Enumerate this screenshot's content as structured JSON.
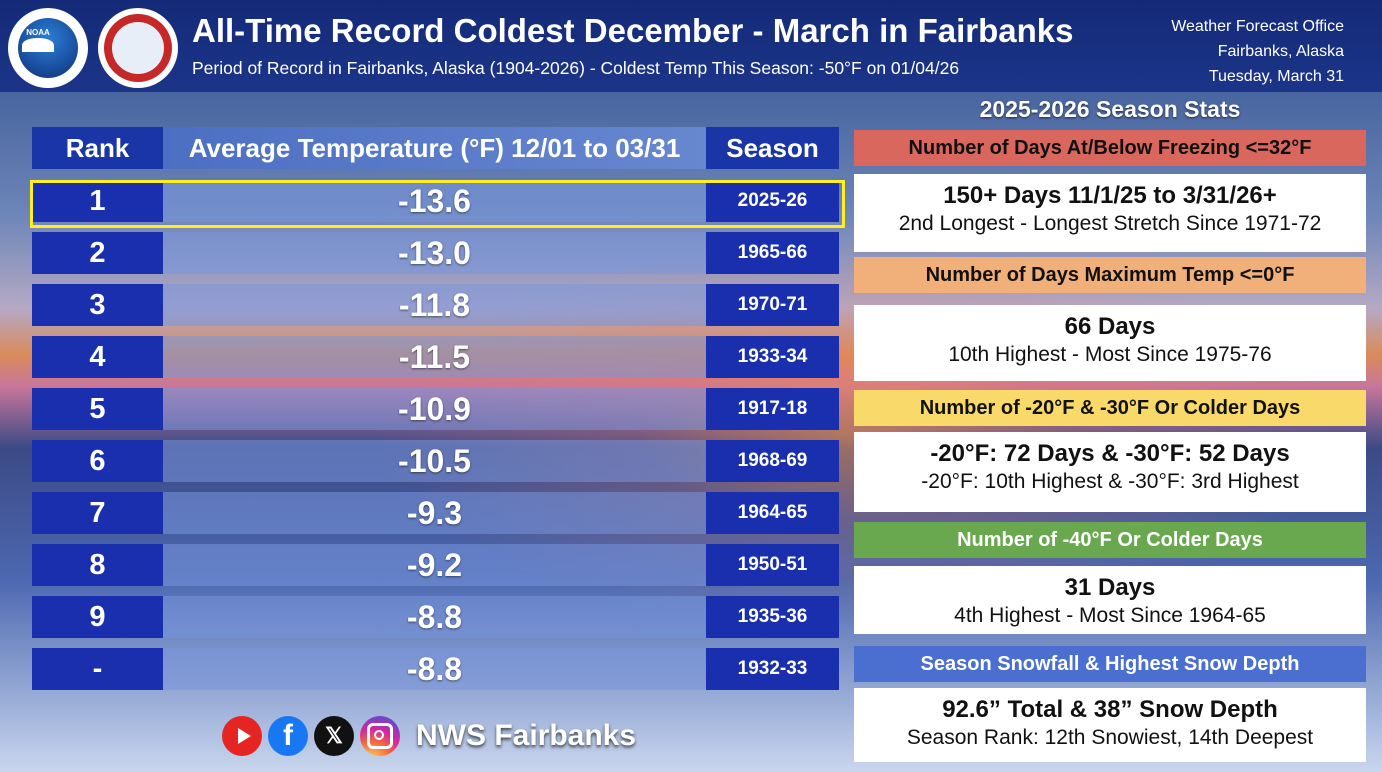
{
  "header": {
    "title": "All-Time Record Coldest December - March in Fairbanks",
    "subtitle": "Period of Record in Fairbanks, Alaska (1904-2026) - Coldest Temp This Season: -50°F on 01/04/26",
    "office_line1": "Weather Forecast Office",
    "office_line2": "Fairbanks, Alaska",
    "office_line3": "Tuesday, March 31",
    "logo_noaa_text": "NOAA"
  },
  "table": {
    "headers": {
      "rank": "Rank",
      "temp": "Average Temperature (°F) 12/01 to 03/31",
      "season": "Season"
    },
    "rows": [
      {
        "rank": "1",
        "temp": "-13.6",
        "season": "2025-26"
      },
      {
        "rank": "2",
        "temp": "-13.0",
        "season": "1965-66"
      },
      {
        "rank": "3",
        "temp": "-11.8",
        "season": "1970-71"
      },
      {
        "rank": "4",
        "temp": "-11.5",
        "season": "1933-34"
      },
      {
        "rank": "5",
        "temp": "-10.9",
        "season": "1917-18"
      },
      {
        "rank": "6",
        "temp": "-10.5",
        "season": "1968-69"
      },
      {
        "rank": "7",
        "temp": "-9.3",
        "season": "1964-65"
      },
      {
        "rank": "8",
        "temp": "-9.2",
        "season": "1950-51"
      },
      {
        "rank": "9",
        "temp": "-8.8",
        "season": "1935-36"
      },
      {
        "rank": "-",
        "temp": "-8.8",
        "season": "1932-33"
      }
    ]
  },
  "stats": {
    "title": "2025-2026 Season Stats",
    "items": [
      {
        "label": "Number of Days At/Below Freezing <=32°F",
        "label_bg": "#d9675e",
        "label_color": "#111111",
        "big": "150+ Days    11/1/25 to 3/31/26+",
        "small": "2nd Longest - Longest Stretch Since 1971-72"
      },
      {
        "label": "Number of Days Maximum Temp <=0°F",
        "label_bg": "#f1b07a",
        "label_color": "#111111",
        "big": "66 Days",
        "small": "10th Highest - Most Since 1975-76"
      },
      {
        "label": "Number of -20°F & -30°F Or Colder Days",
        "label_bg": "#f8d96a",
        "label_color": "#111111",
        "big": "-20°F: 72 Days & -30°F: 52 Days",
        "small": "-20°F: 10th Highest & -30°F: 3rd Highest"
      },
      {
        "label": "Number of -40°F Or Colder Days",
        "label_bg": "#6aa84f",
        "label_color": "#ffffff",
        "big": "31 Days",
        "small": "4th Highest - Most Since 1964-65"
      },
      {
        "label": "Season Snowfall & Highest Snow Depth",
        "label_bg": "#4a6fd0",
        "label_color": "#ffffff",
        "big": "92.6” Total & 38” Snow Depth",
        "small": "Season Rank: 12th Snowiest, 14th Deepest"
      }
    ]
  },
  "footer": {
    "brand": "NWS Fairbanks",
    "facebook_glyph": "f",
    "x_glyph": "𝕏",
    "icons": [
      "youtube-icon",
      "facebook-icon",
      "x-icon",
      "instagram-icon"
    ]
  }
}
